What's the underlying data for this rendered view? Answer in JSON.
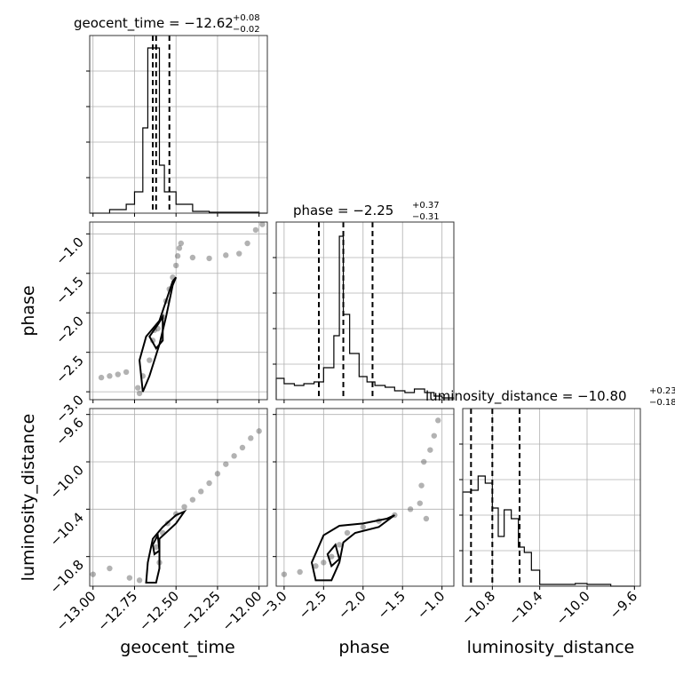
{
  "chart_data": {
    "type": "corner",
    "parameters": [
      "geocent_time",
      "phase",
      "luminosity_distance"
    ],
    "titles": [
      {
        "param": "geocent_time",
        "main": "geocent_time = −12.62",
        "plus": "+0.08",
        "minus": "−0.02"
      },
      {
        "param": "phase",
        "main": "phase = −2.25",
        "plus": "+0.37",
        "minus": "−0.31"
      },
      {
        "param": "luminosity_distance",
        "main": "luminosity_distance = −10.80",
        "plus": "+0.23",
        "minus": "−0.18"
      }
    ],
    "axes": {
      "geocent_time": {
        "range": [
          -13.02,
          -11.95
        ],
        "ticks": [
          -13.0,
          -12.75,
          -12.5,
          -12.25,
          -12.0
        ],
        "tick_labels": [
          "−13.00",
          "−12.75",
          "−12.50",
          "−12.25",
          "−12.00"
        ]
      },
      "phase": {
        "range": [
          -3.1,
          -0.85
        ],
        "ticks": [
          -3.0,
          -2.5,
          -2.0,
          -1.5,
          -1.0
        ],
        "tick_labels": [
          "−3.0",
          "−2.5",
          "−2.0",
          "−1.5",
          "−1.0"
        ]
      },
      "luminosity_distance": {
        "range": [
          -11.05,
          -9.55
        ],
        "ticks": [
          -10.8,
          -10.4,
          -10.0,
          -9.6
        ],
        "tick_labels": [
          "−10.8",
          "−10.4",
          "−10.0",
          "−9.6"
        ]
      }
    },
    "histograms": {
      "geocent_time": {
        "edges": [
          -13.02,
          -12.9,
          -12.8,
          -12.75,
          -12.7,
          -12.67,
          -12.64,
          -12.6,
          -12.57,
          -12.53,
          -12.5,
          -12.4,
          -12.3,
          -12.0,
          -11.95
        ],
        "counts": [
          0,
          0.02,
          0.05,
          0.12,
          0.48,
          0.93,
          0.93,
          0.27,
          0.12,
          0.12,
          0.05,
          0.01,
          0.005,
          0
        ]
      },
      "phase": {
        "edges": [
          -3.1,
          -3.0,
          -2.87,
          -2.75,
          -2.62,
          -2.5,
          -2.37,
          -2.3,
          -2.25,
          -2.17,
          -2.05,
          -1.95,
          -1.85,
          -1.72,
          -1.6,
          -1.47,
          -1.35,
          -1.22,
          -1.1,
          -1.0,
          -0.85
        ],
        "counts": [
          0.12,
          0.09,
          0.08,
          0.09,
          0.1,
          0.18,
          0.36,
          0.92,
          0.48,
          0.26,
          0.13,
          0.1,
          0.08,
          0.07,
          0.05,
          0.04,
          0.06,
          0.04,
          0.02,
          0.01
        ]
      },
      "luminosity_distance": {
        "edges": [
          -11.05,
          -10.98,
          -10.92,
          -10.86,
          -10.8,
          -10.75,
          -10.7,
          -10.64,
          -10.58,
          -10.53,
          -10.47,
          -10.4,
          -10.3,
          -10.2,
          -10.1,
          -10.0,
          -9.9,
          -9.8,
          -9.6
        ],
        "counts": [
          0.53,
          0.54,
          0.62,
          0.58,
          0.44,
          0.28,
          0.43,
          0.38,
          0.22,
          0.19,
          0.09,
          0.01,
          0.01,
          0.01,
          0.015,
          0.01,
          0.01,
          0
        ]
      }
    },
    "quantiles": {
      "geocent_time": [
        -12.64,
        -12.62,
        -12.54
      ],
      "phase": [
        -2.56,
        -2.25,
        -1.88
      ],
      "luminosity_distance": [
        -10.98,
        -10.8,
        -10.57
      ]
    },
    "samples": {
      "phase_vs_geocent_time": [
        [
          -12.95,
          -2.82
        ],
        [
          -12.9,
          -2.8
        ],
        [
          -12.85,
          -2.78
        ],
        [
          -12.8,
          -2.75
        ],
        [
          -12.7,
          -2.8
        ],
        [
          -12.73,
          -2.95
        ],
        [
          -12.72,
          -3.02
        ],
        [
          -12.66,
          -2.6
        ],
        [
          -12.64,
          -2.35
        ],
        [
          -12.63,
          -2.22
        ],
        [
          -12.61,
          -2.2
        ],
        [
          -12.58,
          -2.05
        ],
        [
          -12.56,
          -1.85
        ],
        [
          -12.54,
          -1.7
        ],
        [
          -12.52,
          -1.55
        ],
        [
          -12.5,
          -1.4
        ],
        [
          -12.49,
          -1.28
        ],
        [
          -12.48,
          -1.18
        ],
        [
          -12.47,
          -1.12
        ],
        [
          -12.4,
          -1.3
        ],
        [
          -12.3,
          -1.31
        ],
        [
          -12.2,
          -1.27
        ],
        [
          -12.12,
          -1.25
        ],
        [
          -12.07,
          -1.12
        ],
        [
          -12.02,
          -0.95
        ],
        [
          -11.98,
          -0.88
        ]
      ],
      "luminosity_distance_vs_geocent_time": [
        [
          -13.0,
          -10.95
        ],
        [
          -12.9,
          -10.9
        ],
        [
          -12.78,
          -10.98
        ],
        [
          -12.72,
          -11.0
        ],
        [
          -12.62,
          -10.72
        ],
        [
          -12.6,
          -10.85
        ],
        [
          -12.58,
          -10.6
        ],
        [
          -12.55,
          -10.52
        ],
        [
          -12.5,
          -10.44
        ],
        [
          -12.45,
          -10.38
        ],
        [
          -12.4,
          -10.32
        ],
        [
          -12.35,
          -10.25
        ],
        [
          -12.3,
          -10.18
        ],
        [
          -12.25,
          -10.1
        ],
        [
          -12.2,
          -10.02
        ],
        [
          -12.15,
          -9.95
        ],
        [
          -12.1,
          -9.88
        ],
        [
          -12.05,
          -9.8
        ],
        [
          -12.0,
          -9.74
        ]
      ],
      "luminosity_distance_vs_phase": [
        [
          -3.0,
          -10.95
        ],
        [
          -2.8,
          -10.93
        ],
        [
          -2.6,
          -10.88
        ],
        [
          -2.5,
          -10.85
        ],
        [
          -2.4,
          -10.8
        ],
        [
          -2.3,
          -10.7
        ],
        [
          -2.2,
          -10.6
        ],
        [
          -2.0,
          -10.55
        ],
        [
          -1.8,
          -10.5
        ],
        [
          -1.6,
          -10.45
        ],
        [
          -1.4,
          -10.4
        ],
        [
          -1.2,
          -10.48
        ],
        [
          -1.28,
          -10.35
        ],
        [
          -1.26,
          -10.2
        ],
        [
          -1.23,
          -10.0
        ],
        [
          -1.15,
          -9.9
        ],
        [
          -1.1,
          -9.78
        ],
        [
          -1.05,
          -9.65
        ]
      ]
    },
    "contours": {
      "phase_vs_geocent_time": [
        [
          [
            -12.68,
            -2.3
          ],
          [
            -12.6,
            -2.1
          ],
          [
            -12.56,
            -1.85
          ],
          [
            -12.52,
            -1.6
          ],
          [
            -12.5,
            -1.55
          ],
          [
            -12.52,
            -1.65
          ],
          [
            -12.56,
            -2.05
          ],
          [
            -12.6,
            -2.4
          ],
          [
            -12.66,
            -2.8
          ],
          [
            -12.7,
            -3.0
          ],
          [
            -12.72,
            -2.6
          ],
          [
            -12.68,
            -2.3
          ]
        ],
        [
          [
            -12.66,
            -2.3
          ],
          [
            -12.61,
            -2.15
          ],
          [
            -12.58,
            -2.05
          ],
          [
            -12.58,
            -2.35
          ],
          [
            -12.62,
            -2.45
          ],
          [
            -12.66,
            -2.3
          ]
        ]
      ],
      "luminosity_distance_vs_geocent_time": [
        [
          [
            -12.67,
            -10.85
          ],
          [
            -12.64,
            -10.65
          ],
          [
            -12.58,
            -10.55
          ],
          [
            -12.5,
            -10.45
          ],
          [
            -12.45,
            -10.42
          ],
          [
            -12.5,
            -10.52
          ],
          [
            -12.6,
            -10.65
          ],
          [
            -12.6,
            -10.9
          ],
          [
            -12.62,
            -11.02
          ],
          [
            -12.68,
            -11.02
          ],
          [
            -12.67,
            -10.85
          ]
        ],
        [
          [
            -12.64,
            -10.7
          ],
          [
            -12.61,
            -10.62
          ],
          [
            -12.6,
            -10.75
          ],
          [
            -12.63,
            -10.78
          ],
          [
            -12.64,
            -10.7
          ]
        ]
      ],
      "luminosity_distance_vs_phase": [
        [
          [
            -2.65,
            -10.85
          ],
          [
            -2.5,
            -10.62
          ],
          [
            -2.3,
            -10.54
          ],
          [
            -2.0,
            -10.52
          ],
          [
            -1.7,
            -10.48
          ],
          [
            -1.6,
            -10.45
          ],
          [
            -1.8,
            -10.55
          ],
          [
            -2.1,
            -10.6
          ],
          [
            -2.25,
            -10.68
          ],
          [
            -2.3,
            -10.85
          ],
          [
            -2.4,
            -11.0
          ],
          [
            -2.6,
            -11.0
          ],
          [
            -2.65,
            -10.85
          ]
        ],
        [
          [
            -2.45,
            -10.78
          ],
          [
            -2.35,
            -10.7
          ],
          [
            -2.3,
            -10.82
          ],
          [
            -2.4,
            -10.88
          ],
          [
            -2.45,
            -10.78
          ]
        ]
      ]
    },
    "grid": true
  }
}
